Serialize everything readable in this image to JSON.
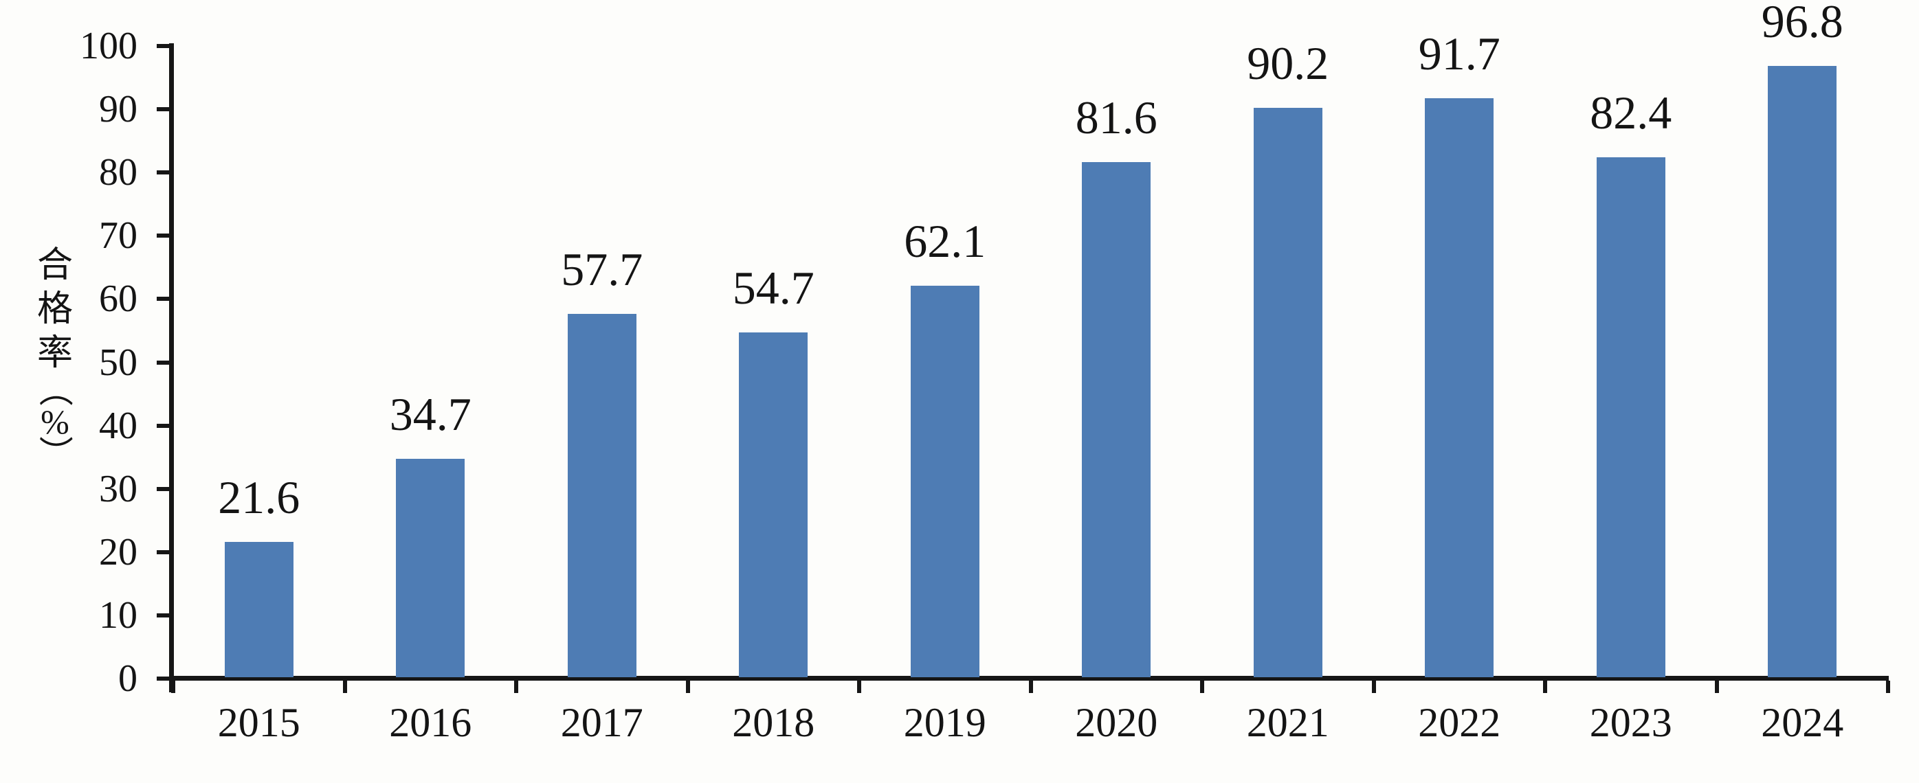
{
  "chart_data": {
    "type": "bar",
    "title": "",
    "categories": [
      "2015",
      "2016",
      "2017",
      "2018",
      "2019",
      "2020",
      "2021",
      "2022",
      "2023",
      "2024"
    ],
    "values": [
      21.6,
      34.7,
      57.7,
      54.7,
      62.1,
      81.6,
      90.2,
      91.7,
      82.4,
      96.8
    ],
    "xlabel": "",
    "ylabel": "合格率（%）",
    "ylabel_chars": [
      "合",
      "格",
      "率",
      "（",
      "%",
      "）"
    ],
    "ylim": [
      0,
      100
    ],
    "yticks": [
      0,
      10,
      20,
      30,
      40,
      50,
      60,
      70,
      80,
      90,
      100
    ],
    "grid": false,
    "legend": false,
    "data_labels": true,
    "bar_color": "#4E7CB4",
    "axis_color": "#161616",
    "text_color": "#141414",
    "background_color": "#fdfdfb"
  }
}
